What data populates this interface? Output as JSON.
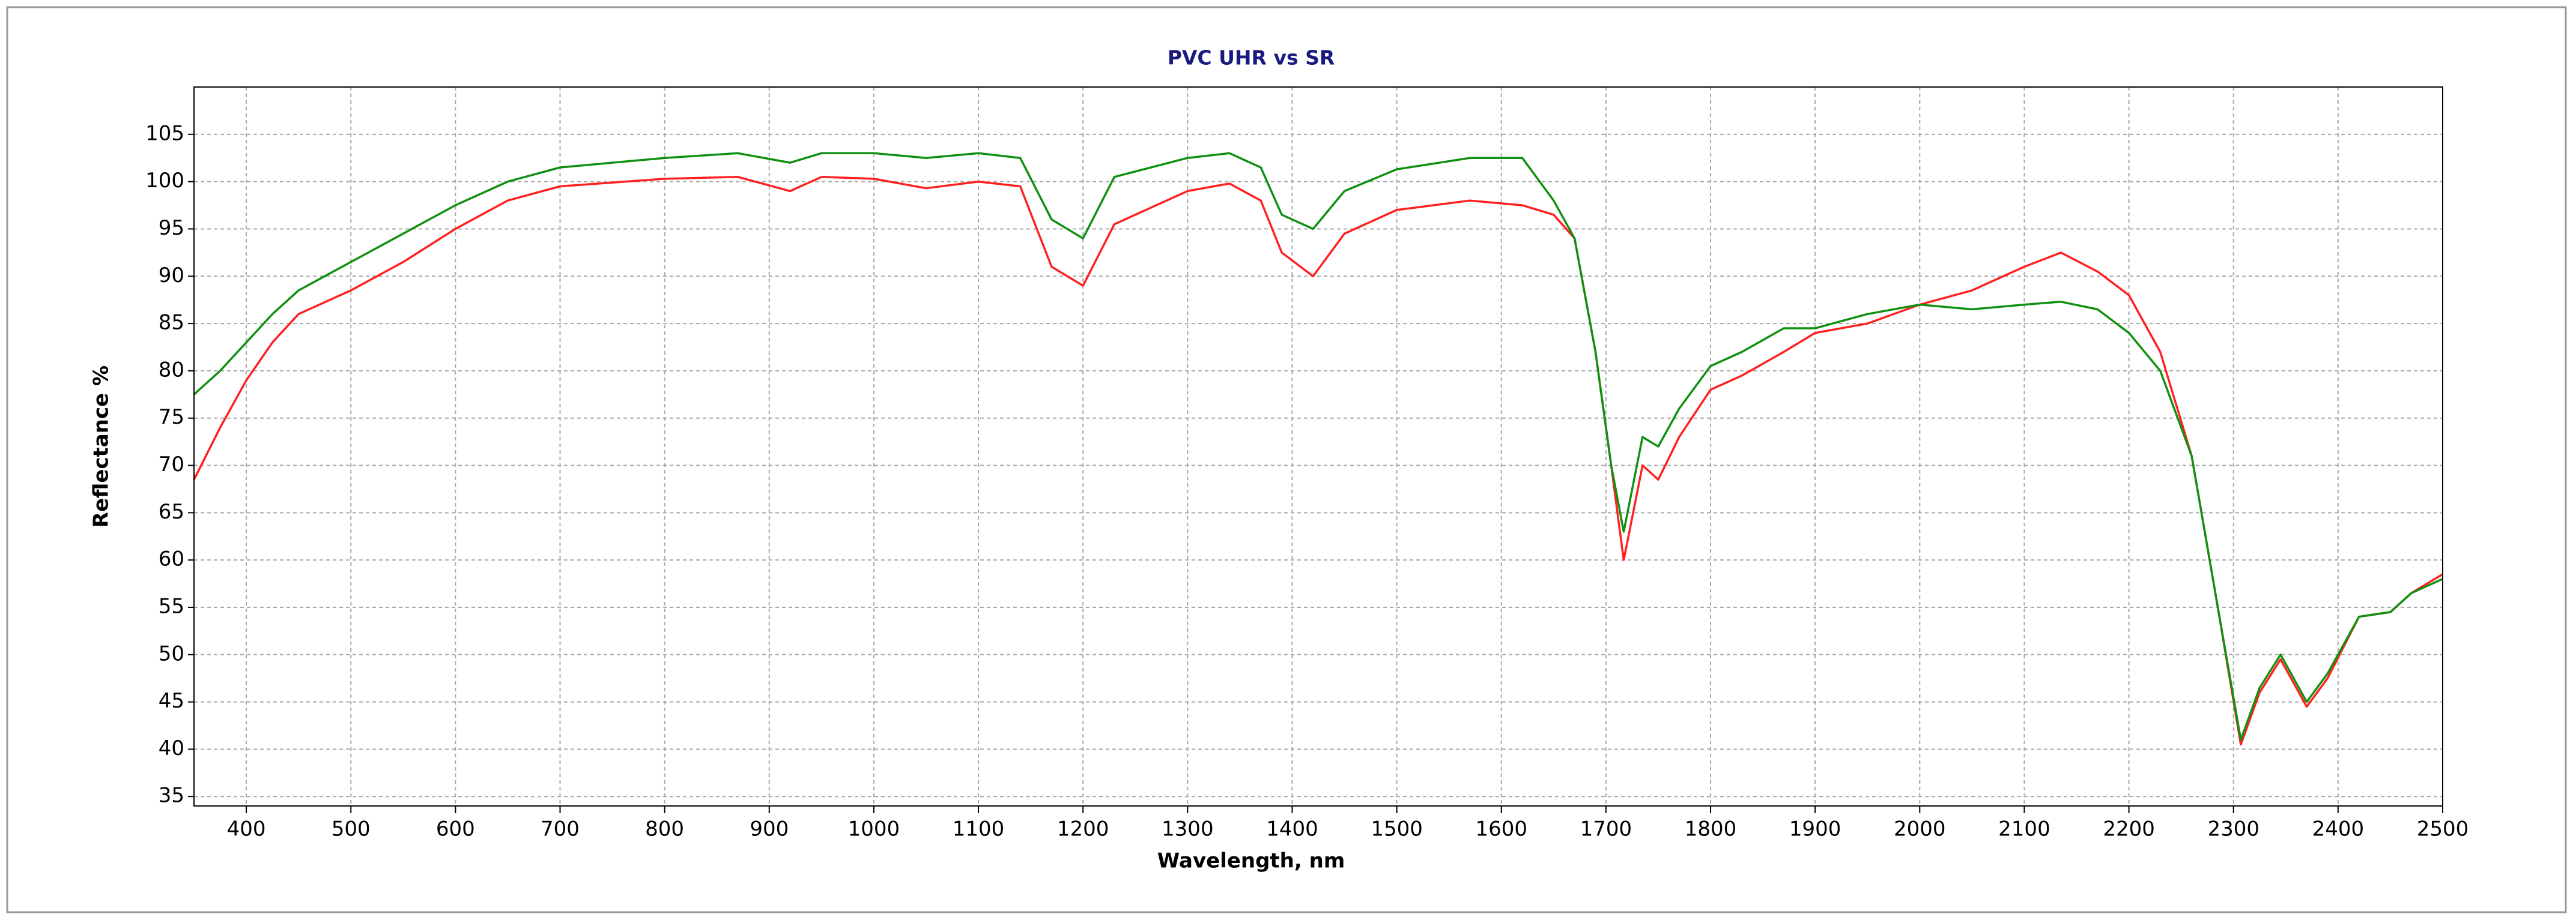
{
  "chart_data": {
    "type": "line",
    "title": "PVC UHR vs SR",
    "x_label": "Wavelength, nm",
    "y_label": "Reflectance %",
    "x": [
      350,
      375,
      400,
      425,
      450,
      500,
      550,
      600,
      650,
      700,
      800,
      870,
      920,
      950,
      1000,
      1050,
      1100,
      1140,
      1170,
      1200,
      1230,
      1300,
      1340,
      1370,
      1390,
      1420,
      1450,
      1500,
      1570,
      1620,
      1650,
      1670,
      1690,
      1705,
      1717,
      1735,
      1750,
      1770,
      1800,
      1830,
      1870,
      1900,
      1950,
      2000,
      2050,
      2100,
      2135,
      2170,
      2200,
      2230,
      2260,
      2285,
      2307,
      2325,
      2345,
      2370,
      2390,
      2420,
      2450,
      2470,
      2500
    ],
    "series": [
      {
        "color": "#ff2020",
        "values": [
          68.5,
          74,
          79,
          83,
          86,
          88.5,
          91.5,
          95,
          98,
          99.5,
          100.3,
          100.5,
          99,
          100.5,
          100.3,
          99.3,
          100,
          99.5,
          91,
          89,
          95.5,
          99,
          99.8,
          98,
          92.5,
          90,
          94.5,
          97,
          98,
          97.5,
          96.5,
          94,
          82,
          70,
          60,
          70,
          68.5,
          73,
          78,
          79.5,
          82,
          84,
          85,
          87,
          88.5,
          91,
          92.5,
          90.5,
          88,
          82,
          71,
          55,
          40.5,
          46,
          49.5,
          44.5,
          47.5,
          54,
          54.5,
          56.5,
          58.5
        ]
      },
      {
        "color": "#109010",
        "values": [
          77.5,
          80,
          83,
          86,
          88.5,
          91.5,
          94.5,
          97.5,
          100,
          101.5,
          102.5,
          103,
          102,
          103,
          103,
          102.5,
          103,
          102.5,
          96,
          94,
          100.5,
          102.5,
          103,
          101.5,
          96.5,
          95,
          99,
          101.3,
          102.5,
          102.5,
          98,
          94,
          82,
          70,
          63,
          73,
          72,
          76,
          80.5,
          82,
          84.5,
          84.5,
          86,
          87,
          86.5,
          87,
          87.3,
          86.5,
          84,
          80,
          71,
          55,
          41,
          46.5,
          50,
          45,
          48,
          54,
          54.5,
          56.5,
          58
        ]
      }
    ],
    "xlim": [
      350,
      2500
    ],
    "xticks": [
      400,
      500,
      600,
      700,
      800,
      900,
      1000,
      1100,
      1200,
      1300,
      1400,
      1500,
      1600,
      1700,
      1800,
      1900,
      2000,
      2100,
      2200,
      2300,
      2400,
      2500
    ],
    "ylim": [
      34,
      110
    ],
    "yticks": [
      35,
      40,
      45,
      50,
      55,
      60,
      65,
      70,
      75,
      80,
      85,
      90,
      95,
      100,
      105
    ],
    "grid": true
  }
}
